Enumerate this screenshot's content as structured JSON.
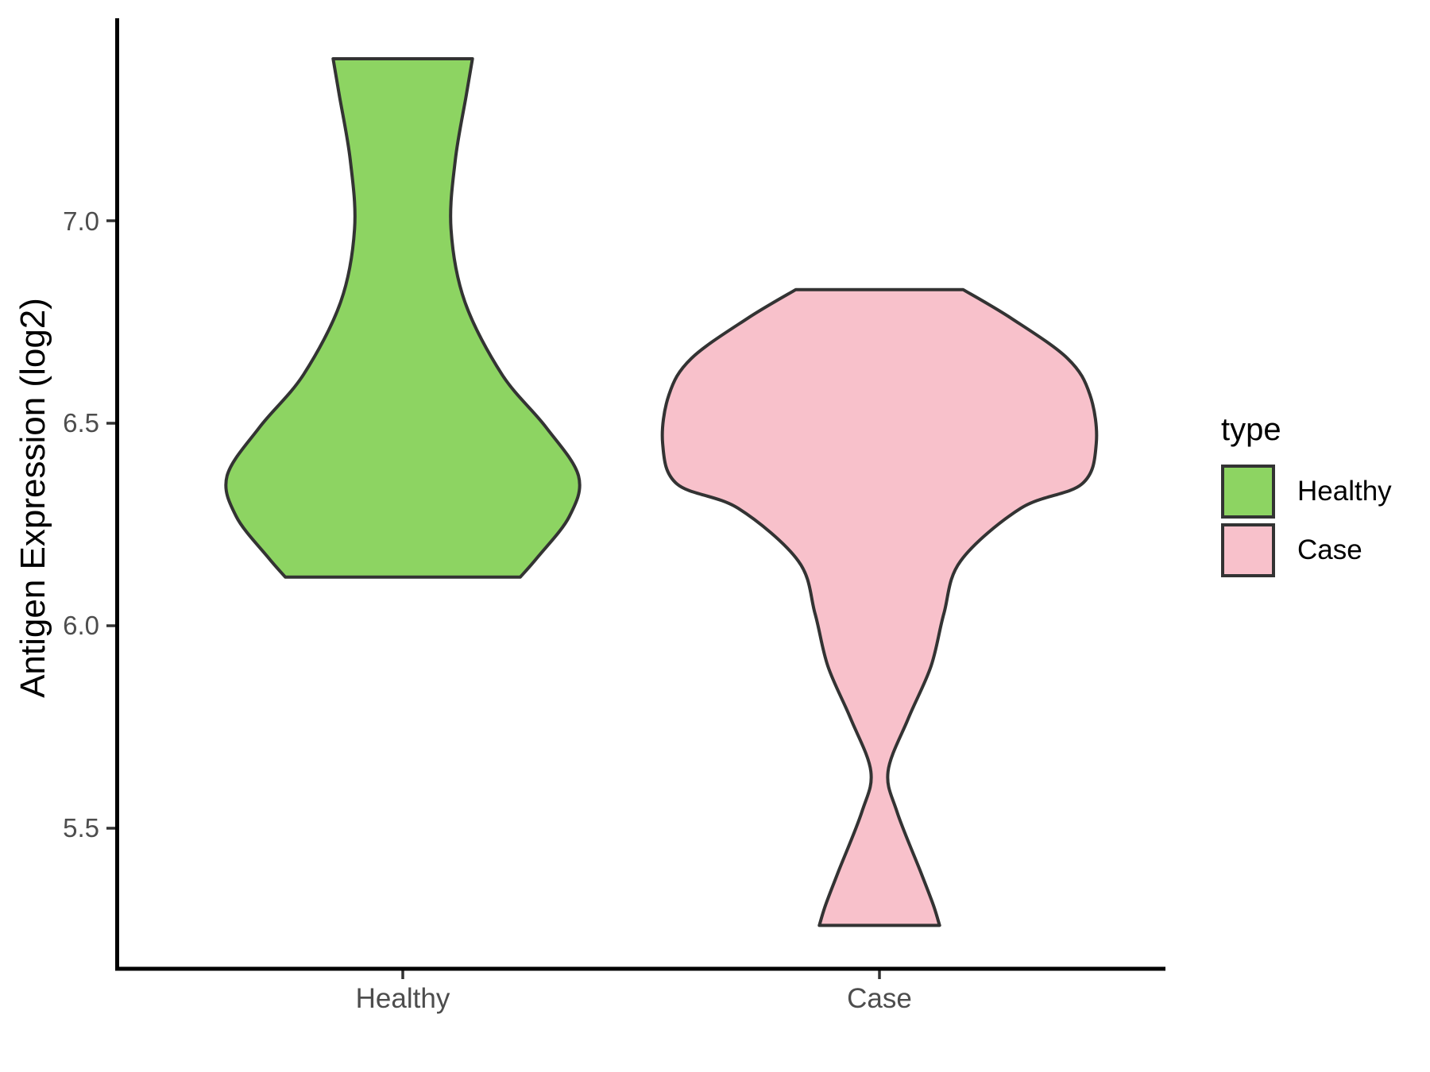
{
  "figure": {
    "background": "#FFFFFF",
    "axis_color": "#000000",
    "tick_color": "#333333",
    "tick_label_color": "#4D4D4D",
    "violin_outline_color": "#333333"
  },
  "y_axis": {
    "title": "Antigen Expression (log2)",
    "tick_labels": [
      "7.0",
      "6.5",
      "6.0",
      "5.5"
    ]
  },
  "x_axis": {
    "tick_labels": [
      "Healthy",
      "Case"
    ]
  },
  "legend": {
    "title": "type",
    "items": [
      {
        "label": "Healthy",
        "color": "#8DD462"
      },
      {
        "label": "Case",
        "color": "#F8C1CB"
      }
    ]
  },
  "chart_data": {
    "type": "violin",
    "title": "",
    "xlabel": "",
    "ylabel": "Antigen Expression (log2)",
    "categories": [
      "Healthy",
      "Case"
    ],
    "y_ticks": [
      7.0,
      6.5,
      6.0,
      5.5
    ],
    "ylim": [
      5.15,
      7.5
    ],
    "grid": false,
    "legend_position": "right",
    "series": [
      {
        "name": "Healthy",
        "fill": "#8DD462",
        "value_range": [
          6.12,
          7.4
        ],
        "widest_at": 6.37,
        "narrowest_at": 6.98,
        "profile": [
          [
            7.4,
            0.146
          ],
          [
            7.31,
            0.133
          ],
          [
            7.15,
            0.11
          ],
          [
            6.98,
            0.101
          ],
          [
            6.8,
            0.13
          ],
          [
            6.62,
            0.208
          ],
          [
            6.49,
            0.3
          ],
          [
            6.37,
            0.368
          ],
          [
            6.27,
            0.349
          ],
          [
            6.17,
            0.283
          ],
          [
            6.12,
            0.246
          ]
        ]
      },
      {
        "name": "Case",
        "fill": "#F8C1CB",
        "value_range": [
          5.26,
          6.83
        ],
        "widest_at": 6.45,
        "narrowest_at": 5.64,
        "profile": [
          [
            6.83,
            0.175
          ],
          [
            6.76,
            0.275
          ],
          [
            6.66,
            0.394
          ],
          [
            6.57,
            0.441
          ],
          [
            6.45,
            0.454
          ],
          [
            6.35,
            0.424
          ],
          [
            6.29,
            0.296
          ],
          [
            6.16,
            0.17
          ],
          [
            6.03,
            0.135
          ],
          [
            5.9,
            0.108
          ],
          [
            5.77,
            0.06
          ],
          [
            5.64,
            0.018
          ],
          [
            5.54,
            0.037
          ],
          [
            5.39,
            0.087
          ],
          [
            5.31,
            0.113
          ],
          [
            5.26,
            0.126
          ]
        ]
      }
    ]
  }
}
